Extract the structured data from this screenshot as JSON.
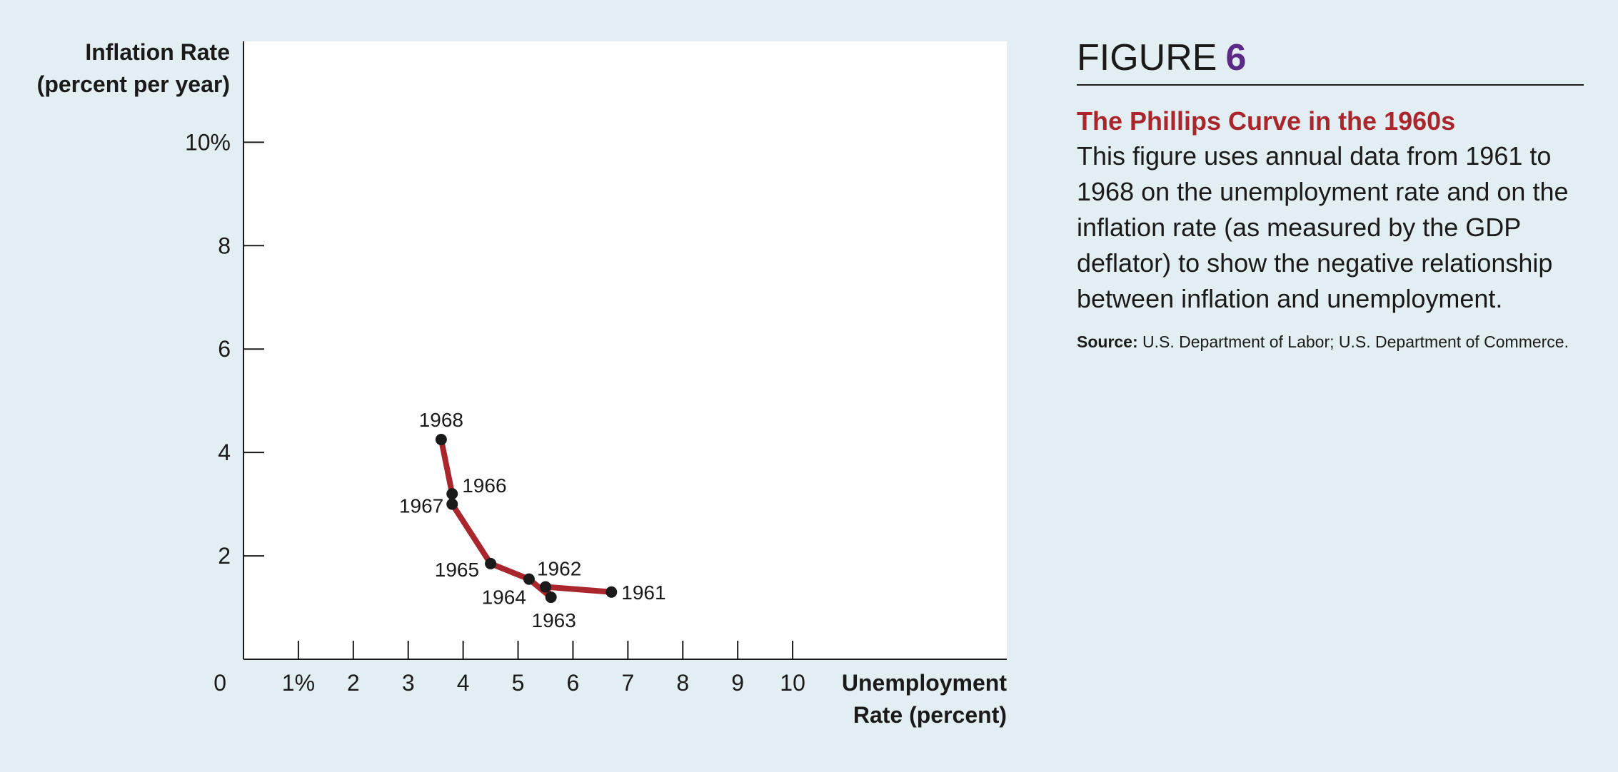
{
  "chart_data": {
    "type": "line",
    "ylabel_lines": [
      "Inflation Rate",
      "(percent per year)"
    ],
    "xlabel_lines": [
      "Unemployment",
      "Rate (percent)"
    ],
    "x_origin_label": "0",
    "x_ticks": [
      {
        "value": 1,
        "label": "1%"
      },
      {
        "value": 2,
        "label": "2"
      },
      {
        "value": 3,
        "label": "3"
      },
      {
        "value": 4,
        "label": "4"
      },
      {
        "value": 5,
        "label": "5"
      },
      {
        "value": 6,
        "label": "6"
      },
      {
        "value": 7,
        "label": "7"
      },
      {
        "value": 8,
        "label": "8"
      },
      {
        "value": 9,
        "label": "9"
      },
      {
        "value": 10,
        "label": "10"
      }
    ],
    "y_ticks": [
      {
        "value": 2,
        "label": "2"
      },
      {
        "value": 4,
        "label": "4"
      },
      {
        "value": 6,
        "label": "6"
      },
      {
        "value": 8,
        "label": "8"
      },
      {
        "value": 10,
        "label": "10%"
      }
    ],
    "xlim": [
      0,
      13.9
    ],
    "ylim": [
      0,
      11.95
    ],
    "grid": false,
    "line_color": "#a8262c",
    "point_color": "#1a1a1a",
    "points": [
      {
        "year": "1961",
        "x": 6.7,
        "y": 1.3,
        "label_pos": "right"
      },
      {
        "year": "1962",
        "x": 5.5,
        "y": 1.4,
        "label_pos": "above-right"
      },
      {
        "year": "1963",
        "x": 5.6,
        "y": 1.2,
        "label_pos": "below"
      },
      {
        "year": "1964",
        "x": 5.2,
        "y": 1.55,
        "label_pos": "below-left"
      },
      {
        "year": "1965",
        "x": 4.5,
        "y": 1.85,
        "label_pos": "left"
      },
      {
        "year": "1966",
        "x": 3.8,
        "y": 3.2,
        "label_pos": "right"
      },
      {
        "year": "1967",
        "x": 3.8,
        "y": 3.0,
        "label_pos": "left"
      },
      {
        "year": "1968",
        "x": 3.6,
        "y": 4.25,
        "label_pos": "above"
      }
    ],
    "line_order": [
      "1961",
      "1962",
      "1963",
      "1964",
      "1965",
      "1967",
      "1966",
      "1968"
    ]
  },
  "figure": {
    "label": "FIGURE",
    "number": "6",
    "title": "The Phillips Curve in the 1960s",
    "description": "This figure uses annual data from 1961 to 1968 on the unemployment rate and on the inflation rate (as measured by the GDP deflator) to show the negative relationship between inflation and unemployment.",
    "source_label": "Source:",
    "source_text": "U.S. Department of Labor; U.S. Department of Commerce."
  }
}
